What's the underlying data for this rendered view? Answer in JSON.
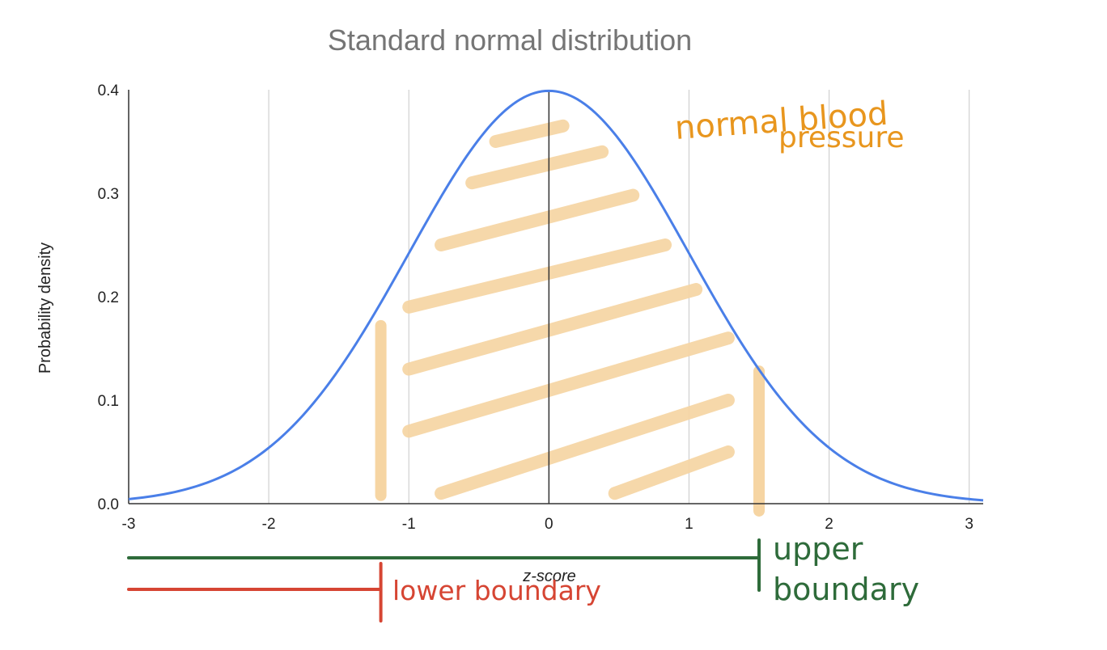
{
  "chart_data": {
    "type": "line",
    "title": "Standard normal distribution",
    "xlabel": "z-score",
    "ylabel": "Probability density",
    "xlim": [
      -3,
      3.1
    ],
    "ylim": [
      0,
      0.4
    ],
    "x_ticks": [
      "-3",
      "-2",
      "-1",
      "0",
      "1",
      "2",
      "3"
    ],
    "y_ticks": [
      "0.0",
      "0.1",
      "0.2",
      "0.3",
      "0.4"
    ],
    "grid": true,
    "series": [
      {
        "function": "standard normal pdf",
        "color": "#4a7fe8",
        "x": [
          -3,
          -2.5,
          -2,
          -1.5,
          -1,
          -0.5,
          0,
          0.5,
          1,
          1.5,
          2,
          2.5,
          3
        ],
        "y": [
          0.0044,
          0.0175,
          0.054,
          0.1295,
          0.242,
          0.3521,
          0.3989,
          0.3521,
          0.242,
          0.1295,
          0.054,
          0.0175,
          0.0044
        ]
      }
    ],
    "shaded_region": {
      "x_from": -1.2,
      "x_to": 1.5,
      "color": "#f6d5a3"
    },
    "annotations": [
      {
        "text": "normal blood",
        "color": "#e8961e"
      },
      {
        "text": "pressure",
        "color": "#e8961e"
      },
      {
        "text": "upper",
        "color": "#2e6b3a"
      },
      {
        "text": "boundary",
        "color": "#2e6b3a"
      },
      {
        "text": "lower boundary",
        "color": "#d64533"
      }
    ],
    "boundaries": {
      "lower": {
        "x": -1.2,
        "color": "#d64533"
      },
      "upper": {
        "x": 1.5,
        "color": "#2e6b3a"
      }
    }
  }
}
